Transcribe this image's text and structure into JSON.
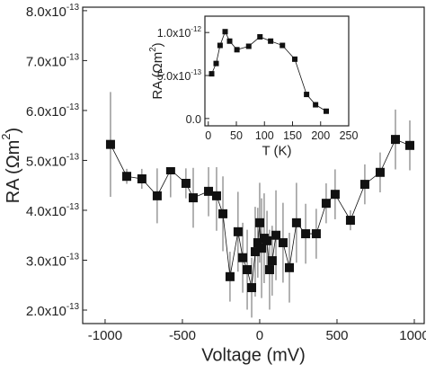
{
  "chart_data": [
    {
      "type": "scatter",
      "x_label": "Voltage (mV)",
      "y_label": "RA (Ωm2)",
      "xlim": [
        -1145,
        1064
      ],
      "ylim": [
        1.73e-13,
        8.07e-13
      ],
      "xticks": [
        -1000,
        -500,
        0,
        500,
        1000
      ],
      "yticks": [
        {
          "value": 2e-13,
          "label": "2.0x10-13"
        },
        {
          "value": 3e-13,
          "label": "3.0x10-13"
        },
        {
          "value": 4e-13,
          "label": "4.0x10-13"
        },
        {
          "value": 5e-13,
          "label": "5.0x10-13"
        },
        {
          "value": 6e-13,
          "label": "6.0x10-13"
        },
        {
          "value": 7e-13,
          "label": "7.0x10-13"
        },
        {
          "value": 8e-13,
          "label": "8.0x10-13"
        }
      ],
      "series": [
        {
          "color": "#111111",
          "x": [
            -965,
            -860,
            -762,
            -663,
            -576,
            -477,
            -430,
            -331,
            -279,
            -238,
            -192,
            -140,
            -110,
            -81,
            -52,
            -29,
            -12,
            0,
            12,
            29,
            47,
            64,
            81,
            105,
            151,
            192,
            238,
            297,
            366,
            430,
            488,
            587,
            680,
            779,
            878,
            971
          ],
          "values": [
            5.32e-13,
            4.68e-13,
            4.63e-13,
            4.29e-13,
            4.81e-13,
            4.54e-13,
            4.25e-13,
            4.38e-13,
            4.29e-13,
            3.93e-13,
            2.67e-13,
            3.57e-13,
            3.05e-13,
            2.81e-13,
            2.45e-13,
            3.17e-13,
            3.35e-13,
            3.75e-13,
            3.24e-13,
            3.44e-13,
            3.39e-13,
            2.81e-13,
            2.99e-13,
            3.5e-13,
            3.35e-13,
            2.85e-13,
            3.75e-13,
            3.53e-13,
            3.53e-13,
            4.14e-13,
            4.32e-13,
            3.8e-13,
            4.52e-13,
            4.76e-13,
            5.42e-13,
            5.3e-13
          ],
          "errors": [
            1.05e-13,
            1.5e-14,
            2e-14,
            5.5e-14,
            5.5e-14,
            3e-14,
            6e-14,
            5e-14,
            7e-14,
            7.5e-14,
            5e-14,
            8e-14,
            7e-14,
            8e-14,
            6e-14,
            9e-14,
            7e-14,
            8e-14,
            1e-13,
            9e-14,
            6e-14,
            8e-14,
            7e-14,
            9e-14,
            8e-14,
            7e-14,
            8e-14,
            6e-14,
            5e-14,
            4e-14,
            5e-14,
            2e-14,
            4e-14,
            4e-14,
            6e-14,
            5e-14
          ]
        }
      ]
    },
    {
      "type": "scatter",
      "x_label": "T (K)",
      "y_label": "RA (Ωm2)",
      "xlim": [
        -6,
        250
      ],
      "ylim": [
        -8.5e-14,
        1.19e-12
      ],
      "xticks": [
        0,
        50,
        100,
        150,
        200,
        250
      ],
      "yticks": [
        {
          "value": 0,
          "label": "0.0"
        },
        {
          "value": 5e-13,
          "label": "5.0x10-13"
        },
        {
          "value": 1e-12,
          "label": "1.0x10-12"
        }
      ],
      "series": [
        {
          "color": "#111111",
          "x": [
            6,
            14,
            21,
            30,
            38,
            51,
            72,
            92,
            111,
            132,
            154,
            175,
            191,
            210
          ],
          "values": [
            5.2e-13,
            6.4e-13,
            8.5e-13,
            1.01e-12,
            9e-13,
            8e-13,
            8.4e-13,
            9.5e-13,
            9e-13,
            8.5e-13,
            6.9e-13,
            2.8e-13,
            1.6e-13,
            8.5e-14
          ]
        }
      ]
    }
  ]
}
